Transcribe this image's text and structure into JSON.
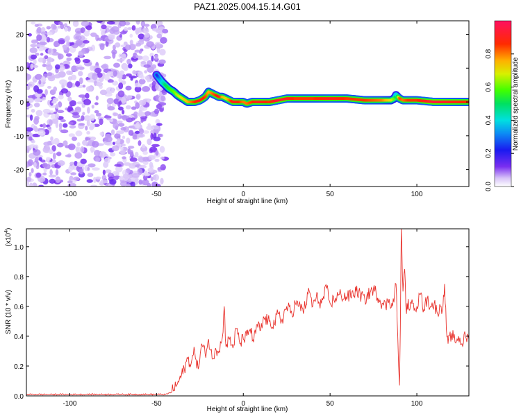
{
  "figure_title": "PAZ1.2025.004.15.14.G01",
  "colors": {
    "snr_line": "#e8302a",
    "axes": "#000000"
  },
  "chart_data": [
    {
      "type": "heatmap",
      "title": "PAZ1.2025.004.15.14.G01",
      "xlabel": "Height of straight line (km)",
      "ylabel": "Frequency (Hz)",
      "xlim": [
        -125,
        130
      ],
      "ylim": [
        -25,
        24
      ],
      "xticks": [
        -100,
        -50,
        0,
        50,
        100
      ],
      "yticks": [
        -20,
        -10,
        0,
        10,
        20
      ],
      "colorbar": {
        "label": "Normalized spectral amplitude",
        "range": [
          0,
          1
        ],
        "ticks": [
          0.0,
          0.2,
          0.4,
          0.6,
          0.8
        ],
        "colormap": "rainbow"
      },
      "noise_region_x": [
        -125,
        -45
      ],
      "ridge": {
        "x": [
          -50,
          -47,
          -45,
          -43,
          -40,
          -38,
          -35,
          -32,
          -28,
          -25,
          -22,
          -20,
          -18,
          -16,
          -14,
          -12,
          -10,
          -8,
          -6,
          -4,
          -2,
          0,
          2,
          5,
          8,
          10,
          15,
          20,
          25,
          30,
          40,
          50,
          60,
          70,
          80,
          85,
          87,
          88,
          90,
          92,
          95,
          100,
          110,
          120,
          130
        ],
        "freq": [
          8,
          6,
          5,
          4,
          3,
          2,
          1,
          0,
          0,
          0.5,
          1.5,
          3,
          2.5,
          2,
          1.5,
          1.5,
          1,
          0.5,
          0,
          0,
          0,
          0,
          -0.5,
          0,
          0,
          0,
          0,
          0.5,
          1,
          1,
          1,
          1,
          1,
          0.5,
          0.5,
          0.5,
          1,
          2,
          1,
          0.5,
          0.5,
          0.5,
          0,
          0,
          0
        ],
        "amplitude": [
          0.2,
          0.4,
          0.5,
          0.55,
          0.6,
          0.65,
          0.7,
          0.75,
          0.85,
          0.9,
          0.85,
          0.75,
          0.8,
          0.85,
          0.9,
          0.75,
          0.7,
          0.8,
          0.9,
          0.9,
          0.85,
          0.8,
          0.8,
          0.85,
          0.9,
          0.9,
          0.85,
          0.95,
          0.9,
          0.85,
          0.85,
          0.9,
          0.85,
          0.85,
          0.8,
          0.7,
          0.6,
          0.4,
          0.85,
          0.8,
          0.85,
          0.85,
          0.95,
          0.9,
          0.85
        ]
      }
    },
    {
      "type": "line",
      "xlabel": "Height of straight line (km)",
      "ylabel": "SNR (10 * v/v)",
      "scale_label": "(x10",
      "scale_exponent": "4",
      "xlim": [
        -125,
        130
      ],
      "ylim": [
        0,
        1.12
      ],
      "xticks": [
        -100,
        -50,
        0,
        50,
        100
      ],
      "yticks": [
        0.0,
        0.2,
        0.4,
        0.6,
        0.8,
        1.0
      ],
      "series": [
        {
          "x": [
            -125,
            -110,
            -100,
            -90,
            -80,
            -70,
            -60,
            -50,
            -45,
            -42,
            -40,
            -38,
            -36,
            -34,
            -32,
            -30,
            -28,
            -26,
            -24,
            -22,
            -20,
            -18,
            -16,
            -14,
            -12,
            -11,
            -10,
            -8,
            -6,
            -4,
            -2,
            0,
            2,
            4,
            6,
            8,
            10,
            12,
            15,
            18,
            20,
            22,
            25,
            28,
            30,
            32,
            35,
            38,
            40,
            42,
            45,
            48,
            50,
            55,
            60,
            65,
            70,
            75,
            80,
            82,
            84,
            86,
            88,
            89,
            89.5,
            90,
            90.5,
            91,
            92,
            93,
            94,
            95,
            96,
            98,
            100,
            102,
            104,
            106,
            108,
            110,
            112,
            114,
            115,
            116,
            117,
            118,
            120,
            122,
            124,
            126,
            128,
            130
          ],
          "y": [
            0.01,
            0.01,
            0.01,
            0.01,
            0.01,
            0.01,
            0.01,
            0.01,
            0.01,
            0.02,
            0.04,
            0.08,
            0.12,
            0.18,
            0.25,
            0.22,
            0.3,
            0.18,
            0.35,
            0.28,
            0.38,
            0.25,
            0.32,
            0.3,
            0.4,
            0.6,
            0.33,
            0.38,
            0.32,
            0.45,
            0.35,
            0.38,
            0.4,
            0.45,
            0.36,
            0.48,
            0.44,
            0.52,
            0.5,
            0.48,
            0.55,
            0.5,
            0.6,
            0.55,
            0.62,
            0.6,
            0.58,
            0.7,
            0.6,
            0.66,
            0.62,
            0.72,
            0.62,
            0.68,
            0.66,
            0.7,
            0.65,
            0.72,
            0.62,
            0.6,
            0.65,
            0.6,
            0.75,
            0.4,
            0.2,
            0.07,
            0.45,
            1.12,
            0.7,
            0.85,
            0.55,
            0.65,
            0.58,
            0.62,
            0.6,
            0.68,
            0.58,
            0.65,
            0.6,
            0.62,
            0.55,
            0.6,
            0.58,
            0.75,
            0.45,
            0.35,
            0.42,
            0.36,
            0.4,
            0.35,
            0.4,
            0.38
          ]
        }
      ]
    }
  ]
}
